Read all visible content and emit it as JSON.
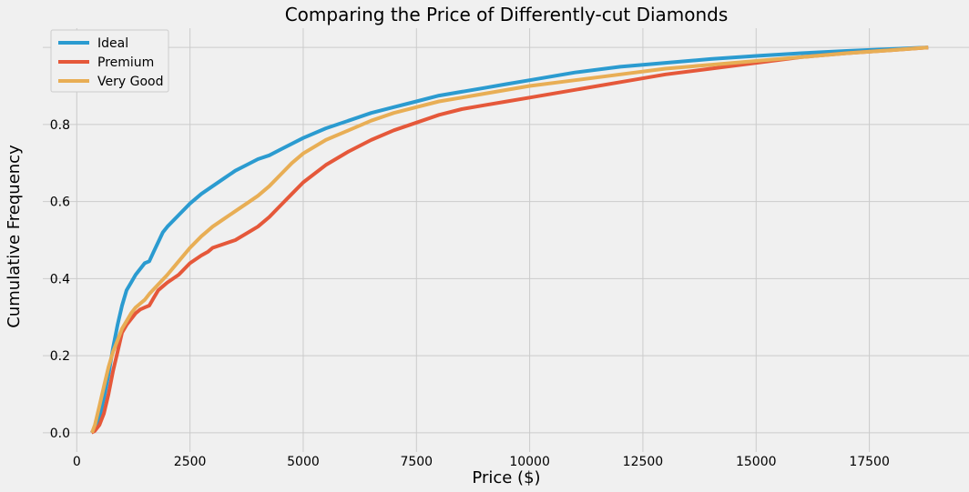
{
  "chart_data": {
    "type": "line",
    "title": "Comparing the Price of Differently-cut Diamonds",
    "xlabel": "Price ($)",
    "ylabel": "Cumulative Frequency",
    "xlim": [
      -750,
      19700
    ],
    "ylim": [
      -0.05,
      1.05
    ],
    "xticks": [
      0,
      2500,
      5000,
      7500,
      10000,
      12500,
      15000,
      17500
    ],
    "xtick_labels": [
      "0",
      "2500",
      "5000",
      "7500",
      "10000",
      "12500",
      "15000",
      "17500"
    ],
    "yticks": [
      0.0,
      0.2,
      0.4,
      0.6,
      0.8,
      1.0
    ],
    "ytick_labels": [
      "0.0",
      "0.2",
      "0.4",
      "0.6",
      "0.8",
      "1.0"
    ],
    "grid": true,
    "legend_position": "top-left",
    "series": [
      {
        "name": "Ideal",
        "color": "#2b9bd0",
        "x": [
          326,
          400,
          500,
          600,
          700,
          800,
          900,
          1000,
          1100,
          1200,
          1300,
          1500,
          1600,
          1700,
          1800,
          1900,
          2000,
          2250,
          2500,
          2750,
          3000,
          3250,
          3500,
          3750,
          4000,
          4250,
          4500,
          5000,
          5500,
          6000,
          6500,
          7000,
          7500,
          8000,
          8500,
          9000,
          9500,
          10000,
          11000,
          12000,
          13000,
          14000,
          15000,
          16000,
          17000,
          18000,
          18800
        ],
        "y": [
          0.0,
          0.01,
          0.04,
          0.09,
          0.15,
          0.22,
          0.28,
          0.33,
          0.37,
          0.39,
          0.41,
          0.44,
          0.445,
          0.47,
          0.495,
          0.52,
          0.535,
          0.565,
          0.595,
          0.62,
          0.64,
          0.66,
          0.68,
          0.695,
          0.71,
          0.72,
          0.735,
          0.765,
          0.79,
          0.81,
          0.83,
          0.845,
          0.86,
          0.875,
          0.885,
          0.895,
          0.905,
          0.915,
          0.935,
          0.95,
          0.96,
          0.97,
          0.978,
          0.985,
          0.991,
          0.996,
          1.0
        ]
      },
      {
        "name": "Premium",
        "color": "#e5583a",
        "x": [
          326,
          400,
          500,
          600,
          700,
          800,
          900,
          1000,
          1100,
          1200,
          1300,
          1400,
          1500,
          1600,
          1700,
          1800,
          1900,
          2000,
          2250,
          2500,
          2750,
          2900,
          3000,
          3500,
          4000,
          4250,
          4500,
          4750,
          5000,
          5500,
          6000,
          6500,
          7000,
          7500,
          8000,
          8500,
          9000,
          9500,
          10000,
          11000,
          12000,
          13000,
          14000,
          15000,
          16000,
          17000,
          18000,
          18800
        ],
        "y": [
          0.0,
          0.005,
          0.02,
          0.05,
          0.1,
          0.16,
          0.21,
          0.26,
          0.28,
          0.295,
          0.31,
          0.32,
          0.325,
          0.33,
          0.35,
          0.37,
          0.38,
          0.39,
          0.41,
          0.44,
          0.46,
          0.47,
          0.48,
          0.5,
          0.535,
          0.56,
          0.59,
          0.62,
          0.65,
          0.695,
          0.73,
          0.76,
          0.785,
          0.805,
          0.825,
          0.84,
          0.85,
          0.86,
          0.87,
          0.89,
          0.91,
          0.93,
          0.945,
          0.96,
          0.975,
          0.985,
          0.993,
          1.0
        ]
      },
      {
        "name": "Very Good",
        "color": "#e8ae55",
        "x": [
          336,
          400,
          500,
          600,
          700,
          800,
          900,
          1000,
          1100,
          1200,
          1300,
          1400,
          1500,
          1600,
          1800,
          2000,
          2250,
          2500,
          2750,
          3000,
          3250,
          3500,
          3750,
          4000,
          4250,
          4500,
          4750,
          5000,
          5500,
          6000,
          6500,
          7000,
          7500,
          8000,
          8500,
          9000,
          10000,
          11000,
          12000,
          13000,
          14000,
          15000,
          16000,
          17000,
          18000,
          18800
        ],
        "y": [
          0.0,
          0.02,
          0.07,
          0.12,
          0.17,
          0.21,
          0.24,
          0.27,
          0.29,
          0.31,
          0.325,
          0.335,
          0.345,
          0.36,
          0.385,
          0.41,
          0.445,
          0.48,
          0.51,
          0.535,
          0.555,
          0.575,
          0.595,
          0.615,
          0.64,
          0.67,
          0.7,
          0.725,
          0.76,
          0.785,
          0.81,
          0.83,
          0.845,
          0.86,
          0.87,
          0.88,
          0.9,
          0.915,
          0.93,
          0.945,
          0.955,
          0.965,
          0.975,
          0.985,
          0.993,
          1.0
        ]
      }
    ]
  }
}
